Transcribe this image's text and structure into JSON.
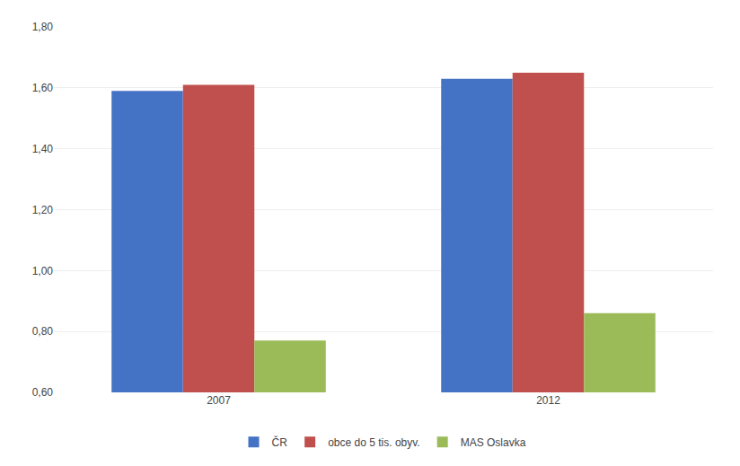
{
  "chart_data": {
    "type": "bar",
    "categories": [
      "2007",
      "2012"
    ],
    "series": [
      {
        "name": "ČR",
        "values": [
          1.59,
          1.63
        ],
        "color": "#4472C4"
      },
      {
        "name": "obce do 5 tis. obyv.",
        "values": [
          1.61,
          1.65
        ],
        "color": "#C0504D"
      },
      {
        "name": "MAS Oslavka",
        "values": [
          0.77,
          0.86
        ],
        "color": "#9BBB59"
      }
    ],
    "ylim": [
      0.6,
      1.8
    ],
    "yticks": [
      {
        "value": 0.6,
        "label": "0,60"
      },
      {
        "value": 0.8,
        "label": "0,80"
      },
      {
        "value": 1.0,
        "label": "1,00"
      },
      {
        "value": 1.2,
        "label": "1,20"
      },
      {
        "value": 1.4,
        "label": "1,40"
      },
      {
        "value": 1.6,
        "label": "1,60"
      },
      {
        "value": 1.8,
        "label": "1,80"
      }
    ],
    "grid": true,
    "legend": "bottom"
  }
}
